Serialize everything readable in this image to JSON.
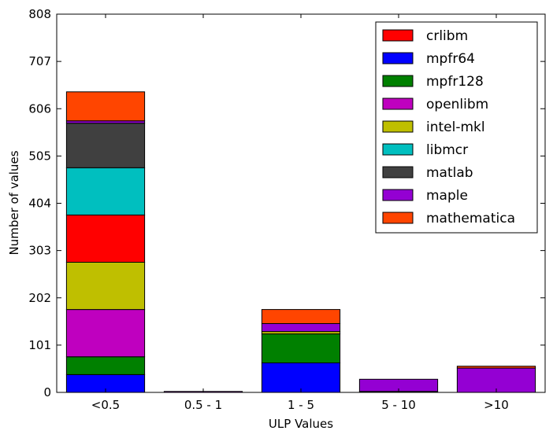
{
  "chart_data": {
    "type": "bar",
    "stacked": true,
    "xlabel": "ULP Values",
    "ylabel": "Number of values",
    "ylim": [
      0,
      808
    ],
    "yticks": [
      0,
      101,
      202,
      303,
      404,
      505,
      606,
      707,
      808
    ],
    "categories": [
      "<0.5",
      "0.5 - 1",
      "1 - 5",
      "5 - 10",
      ">10"
    ],
    "series": [
      {
        "name": "mpfr64",
        "color": "#0000ff",
        "values": [
          38,
          0,
          63,
          0,
          0
        ]
      },
      {
        "name": "mpfr128",
        "color": "#008000",
        "values": [
          38,
          0,
          62,
          0,
          0
        ]
      },
      {
        "name": "openlibm",
        "color": "#bf00bf",
        "values": [
          101,
          0,
          0,
          0,
          0
        ]
      },
      {
        "name": "intel-mkl",
        "color": "#bfbf00",
        "values": [
          101,
          0,
          5,
          0,
          0
        ]
      },
      {
        "name": "crlibm",
        "color": "#ff0000",
        "values": [
          101,
          0,
          0,
          0,
          0
        ]
      },
      {
        "name": "libmcr",
        "color": "#00bfbf",
        "values": [
          101,
          0,
          0,
          0,
          0
        ]
      },
      {
        "name": "matlab",
        "color": "#404040",
        "values": [
          95,
          0,
          0,
          2,
          0
        ]
      },
      {
        "name": "maple",
        "color": "#9400d3",
        "values": [
          5,
          2,
          17,
          26,
          52
        ]
      },
      {
        "name": "mathematica",
        "color": "#ff4500",
        "values": [
          62,
          0,
          30,
          0,
          4
        ]
      }
    ],
    "legend": {
      "position": "top-right",
      "order": [
        "crlibm",
        "mpfr64",
        "mpfr128",
        "openlibm",
        "intel-mkl",
        "libmcr",
        "matlab",
        "maple",
        "mathematica"
      ]
    },
    "grid": false
  }
}
